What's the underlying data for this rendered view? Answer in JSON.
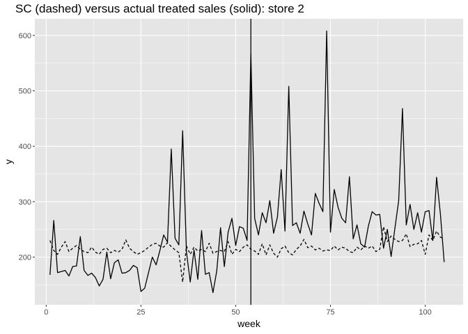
{
  "chart_data": {
    "type": "line",
    "title": "SC (dashed) versus actual treated sales (solid): store 2",
    "xlabel": "week",
    "ylabel": "y",
    "xlim": [
      -3,
      110
    ],
    "ylim": [
      114,
      630
    ],
    "x_ticks": [
      0,
      25,
      50,
      75,
      100
    ],
    "y_ticks": [
      200,
      300,
      400,
      500,
      600
    ],
    "grid": true,
    "background": "#e5e5e5",
    "grid_color": "#ffffff",
    "line_color": "#000000",
    "vline_x": 54,
    "x": [
      1,
      2,
      3,
      4,
      5,
      6,
      7,
      8,
      9,
      10,
      11,
      12,
      13,
      14,
      15,
      16,
      17,
      18,
      19,
      20,
      21,
      22,
      23,
      24,
      25,
      26,
      27,
      28,
      29,
      30,
      31,
      32,
      33,
      34,
      35,
      36,
      37,
      38,
      39,
      40,
      41,
      42,
      43,
      44,
      45,
      46,
      47,
      48,
      49,
      50,
      51,
      52,
      53,
      54,
      55,
      56,
      57,
      58,
      59,
      60,
      61,
      62,
      63,
      64,
      65,
      66,
      67,
      68,
      69,
      70,
      71,
      72,
      73,
      74,
      75,
      76,
      77,
      78,
      79,
      80,
      81,
      82,
      83,
      84,
      85,
      86,
      87,
      88,
      89,
      90,
      91,
      92,
      93,
      94,
      95,
      96,
      97,
      98,
      99,
      100,
      101,
      102,
      103,
      104,
      105
    ],
    "series": [
      {
        "style": "solid",
        "values": [
          168,
          266,
          172,
          174,
          176,
          166,
          183,
          184,
          237,
          176,
          167,
          171,
          163,
          148,
          160,
          209,
          161,
          190,
          195,
          171,
          172,
          176,
          185,
          181,
          138,
          144,
          172,
          200,
          186,
          212,
          240,
          227,
          395,
          234,
          222,
          428,
          210,
          155,
          213,
          160,
          248,
          169,
          172,
          136,
          175,
          253,
          183,
          245,
          270,
          221,
          255,
          252,
          230,
          567,
          270,
          240,
          280,
          262,
          302,
          243,
          272,
          358,
          247,
          508,
          257,
          262,
          243,
          283,
          260,
          240,
          315,
          297,
          282,
          608,
          245,
          322,
          290,
          270,
          262,
          345,
          233,
          258,
          224,
          218,
          256,
          282,
          276,
          277,
          216,
          250,
          201,
          252,
          302,
          468,
          258,
          295,
          250,
          280,
          245,
          282,
          284,
          230,
          344,
          278,
          191
        ]
      },
      {
        "style": "dashed",
        "values": [
          230,
          212,
          205,
          218,
          228,
          210,
          216,
          221,
          214,
          210,
          208,
          218,
          209,
          205,
          214,
          216,
          208,
          212,
          209,
          214,
          231,
          216,
          210,
          205,
          208,
          212,
          218,
          223,
          225,
          220,
          218,
          226,
          219,
          213,
          208,
          155,
          220,
          205,
          218,
          211,
          214,
          210,
          225,
          207,
          210,
          212,
          210,
          228,
          205,
          214,
          210,
          218,
          222,
          214,
          211,
          205,
          224,
          204,
          222,
          207,
          200,
          215,
          220,
          208,
          204,
          214,
          220,
          232,
          217,
          220,
          213,
          216,
          211,
          213,
          212,
          220,
          213,
          218,
          216,
          210,
          208,
          218,
          213,
          220,
          216,
          220,
          210,
          214,
          255,
          228,
          238,
          232,
          228,
          230,
          242,
          219,
          223,
          224,
          230,
          205,
          240,
          230,
          247,
          236,
          233
        ]
      }
    ]
  }
}
